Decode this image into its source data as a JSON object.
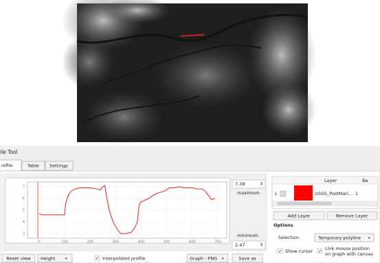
{
  "window": {
    "title": "ile Tool"
  },
  "tabs": [
    "rofile",
    "Table",
    "Settings"
  ],
  "chart_data": {
    "type": "line",
    "x": [
      0,
      10,
      50,
      100,
      105,
      115,
      125,
      140,
      160,
      200,
      230,
      240,
      250,
      258,
      265,
      275,
      290,
      305,
      320,
      340,
      360,
      375,
      385,
      392,
      398,
      410,
      430,
      450,
      470,
      490,
      510,
      530,
      550,
      570,
      600,
      620,
      640,
      655,
      665,
      675,
      690
    ],
    "values": [
      4.7,
      4.6,
      4.6,
      4.6,
      5.6,
      6.3,
      6.6,
      6.8,
      6.9,
      6.9,
      6.8,
      6.7,
      7.0,
      7.1,
      6.1,
      5.0,
      4.0,
      3.4,
      3.0,
      3.0,
      3.1,
      3.5,
      4.0,
      5.4,
      5.7,
      5.8,
      6.0,
      6.3,
      6.5,
      6.6,
      6.9,
      6.9,
      7.0,
      6.9,
      6.9,
      6.8,
      6.8,
      6.5,
      6.2,
      5.9,
      6.0
    ],
    "color": "#e8322d",
    "xlim": [
      -45,
      735
    ],
    "ylim": [
      2.6,
      7.4
    ],
    "xticks": [
      0,
      100,
      200,
      300,
      400,
      500,
      600,
      700
    ],
    "yticks": [
      3,
      4,
      5,
      6,
      7
    ],
    "grid": true
  },
  "range": {
    "max_value": 7.38,
    "max_label": "maximum",
    "min_label": "minimum",
    "min_value": 2.47
  },
  "layers": {
    "headers": [
      "Layer",
      "Ba"
    ],
    "rows": [
      {
        "index": 1,
        "color": "#ff0000",
        "name": "USGS_PostMari...",
        "band": 1
      }
    ],
    "add": "Add Layer",
    "remove": "Remove Layer"
  },
  "options": {
    "title": "Options",
    "selection_label": "Selection",
    "selection": "Temporary polyline",
    "show_cursor": "Show cursor",
    "link_line1": "Link mouse position",
    "link_line2": "on graph with canvas"
  },
  "toolbar": {
    "reset": "Reset view",
    "mode": "Height",
    "interpolated": "Interpolated profile",
    "export": "Graph - PNG",
    "save": "Save as"
  }
}
